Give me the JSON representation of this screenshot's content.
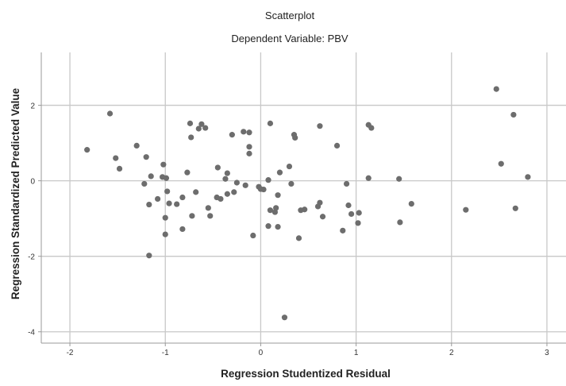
{
  "chart_data": {
    "type": "scatter",
    "title": "Scatterplot",
    "subtitle": "Dependent Variable: PBV",
    "xlabel": "Regression Studentized Residual",
    "ylabel": "Regression Standardized Predicted Value",
    "xlim": [
      -2.3,
      3.2
    ],
    "ylim": [
      -4.3,
      3.4
    ],
    "xticks": [
      -2,
      -1,
      0,
      1,
      2,
      3
    ],
    "yticks": [
      -4,
      -2,
      0,
      2
    ],
    "grid": true,
    "colors": {
      "marker": "#6d6d6d",
      "grid": "#c8c8c8",
      "axis": "#9a9a9a"
    },
    "points": [
      {
        "x": -1.82,
        "y": 0.82
      },
      {
        "x": -1.58,
        "y": 1.78
      },
      {
        "x": -1.52,
        "y": 0.6
      },
      {
        "x": -1.48,
        "y": 0.32
      },
      {
        "x": -1.3,
        "y": 0.93
      },
      {
        "x": -1.2,
        "y": 0.63
      },
      {
        "x": -1.22,
        "y": -0.08
      },
      {
        "x": -1.17,
        "y": -0.63
      },
      {
        "x": -1.15,
        "y": 0.12
      },
      {
        "x": -1.17,
        "y": -1.98
      },
      {
        "x": -1.08,
        "y": -0.48
      },
      {
        "x": -1.02,
        "y": 0.43
      },
      {
        "x": -1.03,
        "y": 0.1
      },
      {
        "x": -0.99,
        "y": 0.07
      },
      {
        "x": -0.98,
        "y": -0.28
      },
      {
        "x": -1.0,
        "y": -0.98
      },
      {
        "x": -1.0,
        "y": -1.42
      },
      {
        "x": -0.96,
        "y": -0.6
      },
      {
        "x": -0.88,
        "y": -0.62
      },
      {
        "x": -0.82,
        "y": -1.28
      },
      {
        "x": -0.82,
        "y": -0.44
      },
      {
        "x": -0.77,
        "y": 0.22
      },
      {
        "x": -0.74,
        "y": 1.52
      },
      {
        "x": -0.73,
        "y": 1.15
      },
      {
        "x": -0.72,
        "y": -0.93
      },
      {
        "x": -0.68,
        "y": -0.3
      },
      {
        "x": -0.65,
        "y": 1.38
      },
      {
        "x": -0.62,
        "y": 1.5
      },
      {
        "x": -0.58,
        "y": 1.4
      },
      {
        "x": -0.55,
        "y": -0.72
      },
      {
        "x": -0.53,
        "y": -0.93
      },
      {
        "x": -0.45,
        "y": 0.35
      },
      {
        "x": -0.46,
        "y": -0.44
      },
      {
        "x": -0.42,
        "y": -0.48
      },
      {
        "x": -0.37,
        "y": 0.05
      },
      {
        "x": -0.35,
        "y": 0.2
      },
      {
        "x": -0.35,
        "y": -0.35
      },
      {
        "x": -0.3,
        "y": 1.22
      },
      {
        "x": -0.28,
        "y": -0.3
      },
      {
        "x": -0.25,
        "y": -0.05
      },
      {
        "x": -0.18,
        "y": 1.3
      },
      {
        "x": -0.16,
        "y": -0.12
      },
      {
        "x": -0.12,
        "y": 1.28
      },
      {
        "x": -0.12,
        "y": 0.9
      },
      {
        "x": -0.12,
        "y": 0.72
      },
      {
        "x": -0.08,
        "y": -1.45
      },
      {
        "x": -0.02,
        "y": -0.16
      },
      {
        "x": 0.0,
        "y": -0.22
      },
      {
        "x": 0.03,
        "y": -0.23
      },
      {
        "x": 0.08,
        "y": 0.02
      },
      {
        "x": 0.1,
        "y": 1.52
      },
      {
        "x": 0.08,
        "y": -1.2
      },
      {
        "x": 0.1,
        "y": -0.78
      },
      {
        "x": 0.15,
        "y": -0.83
      },
      {
        "x": 0.16,
        "y": -0.72
      },
      {
        "x": 0.18,
        "y": -0.38
      },
      {
        "x": 0.2,
        "y": 0.22
      },
      {
        "x": 0.18,
        "y": -1.22
      },
      {
        "x": 0.25,
        "y": -3.62
      },
      {
        "x": 0.3,
        "y": 0.38
      },
      {
        "x": 0.35,
        "y": 1.22
      },
      {
        "x": 0.36,
        "y": 1.14
      },
      {
        "x": 0.32,
        "y": -0.08
      },
      {
        "x": 0.4,
        "y": -1.52
      },
      {
        "x": 0.42,
        "y": -0.78
      },
      {
        "x": 0.46,
        "y": -0.76
      },
      {
        "x": 0.6,
        "y": -0.68
      },
      {
        "x": 0.62,
        "y": -0.58
      },
      {
        "x": 0.62,
        "y": 1.45
      },
      {
        "x": 0.65,
        "y": -0.95
      },
      {
        "x": 0.8,
        "y": 0.93
      },
      {
        "x": 0.86,
        "y": -1.32
      },
      {
        "x": 0.9,
        "y": -0.08
      },
      {
        "x": 0.92,
        "y": -0.65
      },
      {
        "x": 0.95,
        "y": -0.88
      },
      {
        "x": 1.02,
        "y": -1.12
      },
      {
        "x": 1.03,
        "y": -0.85
      },
      {
        "x": 1.13,
        "y": 1.48
      },
      {
        "x": 1.16,
        "y": 1.4
      },
      {
        "x": 1.13,
        "y": 0.07
      },
      {
        "x": 1.45,
        "y": 0.05
      },
      {
        "x": 1.46,
        "y": -1.1
      },
      {
        "x": 1.58,
        "y": -0.61
      },
      {
        "x": 2.15,
        "y": -0.77
      },
      {
        "x": 2.47,
        "y": 2.43
      },
      {
        "x": 2.52,
        "y": 0.45
      },
      {
        "x": 2.65,
        "y": 1.75
      },
      {
        "x": 2.67,
        "y": -0.73
      },
      {
        "x": 2.8,
        "y": 0.1
      }
    ]
  }
}
